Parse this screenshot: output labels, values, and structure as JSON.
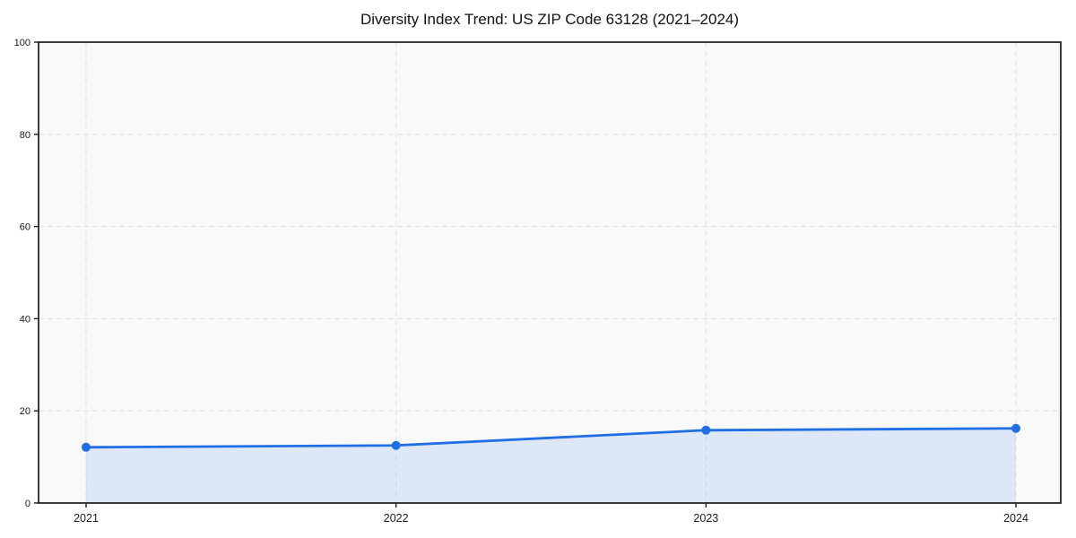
{
  "chart_data": {
    "type": "area",
    "title": "Diversity Index Trend: US ZIP Code 63128 (2021–2024)",
    "x": [
      2021,
      2022,
      2023,
      2024
    ],
    "series": [
      {
        "name": "Diversity Index",
        "values": [
          12.1,
          12.5,
          15.8,
          16.2
        ]
      }
    ],
    "xlabel": "",
    "ylabel": "",
    "ylim": [
      0,
      100
    ],
    "yticks": [
      0,
      20,
      40,
      60,
      80,
      100
    ],
    "grid": {
      "style": "dashed",
      "axes": "both"
    },
    "legend": "none",
    "markers": "filled circles at each data point",
    "colors": {
      "line": "#1f6ee5",
      "marker": "#1f6ee5",
      "fill": "rgba(31, 110, 229, 0.12)",
      "grid": "#e3e3e3",
      "plot_bg": "#f9f9fa",
      "figure_bg": "#ffffff",
      "spine": "#1a1a1a",
      "tick_text": "#1a1a1a"
    }
  }
}
